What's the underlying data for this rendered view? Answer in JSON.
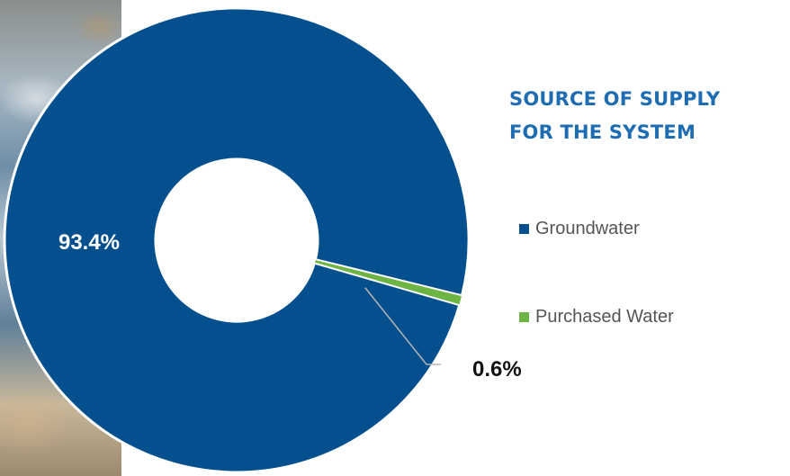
{
  "chart_data": {
    "type": "pie",
    "title_lines": [
      "SOURCE OF SUPPLY",
      "FOR THE SYSTEM"
    ],
    "series": [
      {
        "name": "Groundwater",
        "value": 93.4,
        "label": "93.4%",
        "color": "#04508f"
      },
      {
        "name": "Purchased Water",
        "value": 0.6,
        "label": "0.6%",
        "color": "#6cb443"
      }
    ],
    "legend_position": "right"
  }
}
